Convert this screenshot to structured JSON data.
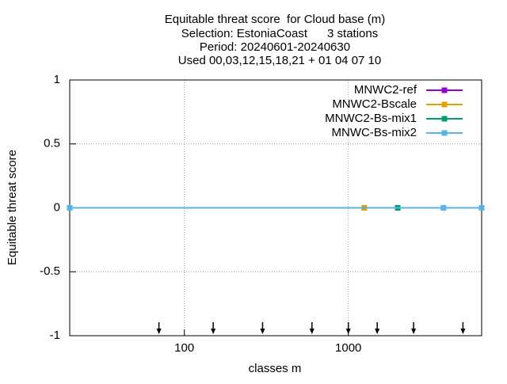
{
  "chart_data": {
    "type": "line",
    "title_lines": [
      "Equitable threat score  for Cloud base (m)",
      "Selection: EstoniaCoast      3 stations",
      "Period: 20240601-20240630",
      "Used 00,03,12,15,18,21 + 01 04 07 10"
    ],
    "xlabel": "classes m",
    "ylabel": "Equitable threat score",
    "xscale": "log",
    "xlim": [
      20,
      6500
    ],
    "xticks": [
      100,
      1000
    ],
    "ylim": [
      -1,
      1
    ],
    "yticks": [
      -1,
      -0.5,
      0,
      0.5,
      1
    ],
    "grid": true,
    "legend": "top-right",
    "series": [
      {
        "name": "MNWC2-ref",
        "color": "#9400d3",
        "x": [
          20,
          6500
        ],
        "values": [
          0,
          0
        ]
      },
      {
        "name": "MNWC2-Bscale",
        "color": "#e69f00",
        "x": [
          20,
          1250,
          6500
        ],
        "values": [
          0,
          0,
          0
        ]
      },
      {
        "name": "MNWC2-Bs-mix1",
        "color": "#009e73",
        "x": [
          20,
          2000,
          6500
        ],
        "values": [
          0,
          0,
          0
        ]
      },
      {
        "name": "MNWC-Bs-mix2",
        "color": "#56b4e9",
        "x": [
          20,
          3800,
          6500
        ],
        "values": [
          0,
          0,
          0
        ]
      }
    ],
    "class_arrows": [
      70,
      150,
      300,
      600,
      1000,
      1500,
      2500,
      5000
    ]
  }
}
